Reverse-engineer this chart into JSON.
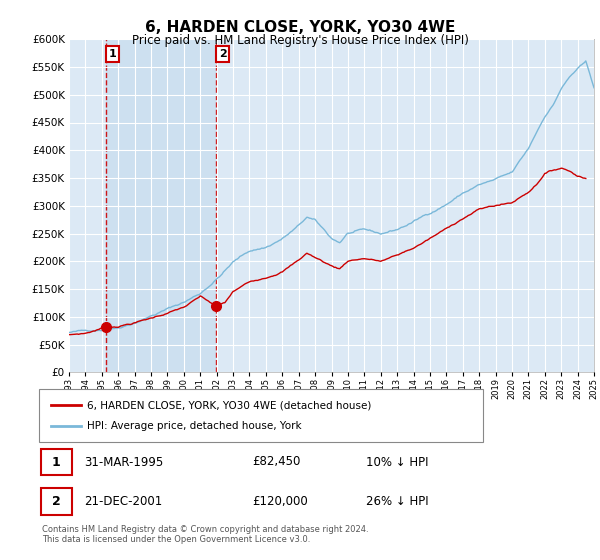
{
  "title": "6, HARDEN CLOSE, YORK, YO30 4WE",
  "subtitle": "Price paid vs. HM Land Registry's House Price Index (HPI)",
  "ylim": [
    0,
    600000
  ],
  "yticks": [
    0,
    50000,
    100000,
    150000,
    200000,
    250000,
    300000,
    350000,
    400000,
    450000,
    500000,
    550000,
    600000
  ],
  "x_start_year": 1993,
  "x_end_year": 2025,
  "plot_bg_color": "#dce9f5",
  "shade_color": "#ccdff0",
  "grid_color": "#ffffff",
  "hpi_color": "#7ab8d9",
  "property_color": "#cc0000",
  "sale1_date": 1995.25,
  "sale1_price": 82450,
  "sale2_date": 2001.97,
  "sale2_price": 120000,
  "legend_label1": "6, HARDEN CLOSE, YORK, YO30 4WE (detached house)",
  "legend_label2": "HPI: Average price, detached house, York",
  "table_row1_num": "1",
  "table_row1_date": "31-MAR-1995",
  "table_row1_price": "£82,450",
  "table_row1_hpi": "10% ↓ HPI",
  "table_row2_num": "2",
  "table_row2_date": "21-DEC-2001",
  "table_row2_price": "£120,000",
  "table_row2_hpi": "26% ↓ HPI",
  "footer": "Contains HM Land Registry data © Crown copyright and database right 2024.\nThis data is licensed under the Open Government Licence v3.0."
}
